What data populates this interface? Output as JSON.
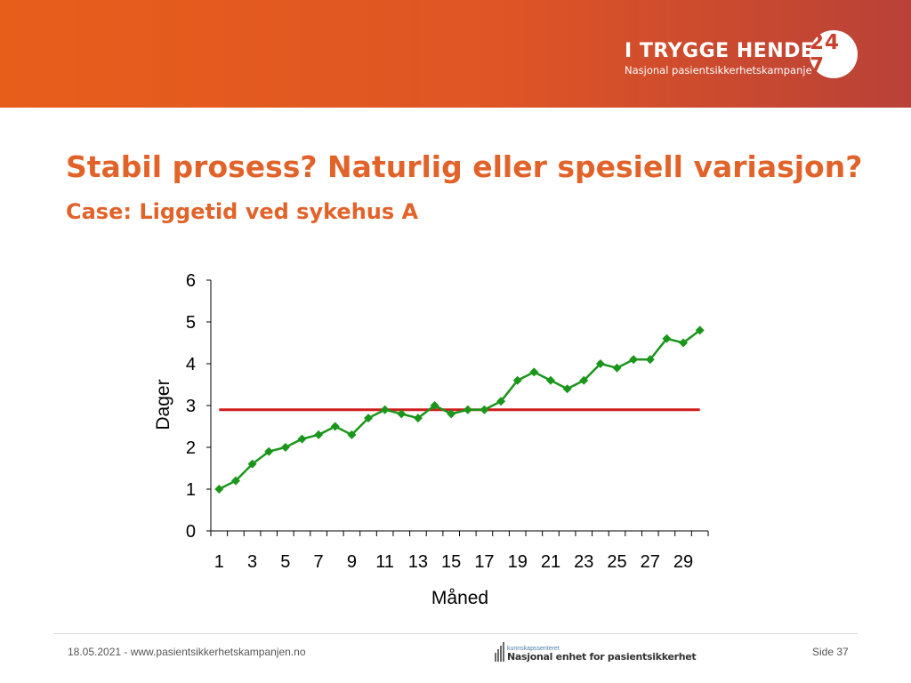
{
  "header": {
    "brand_title": "I TRYGGE HENDER",
    "brand_badge": "24 7",
    "brand_subtitle": "Nasjonal pasientsikkerhetskampanje"
  },
  "slide": {
    "title": "Stabil prosess? Naturlig eller spesiell variasjon?",
    "subtitle": "Case: Liggetid ved sykehus A"
  },
  "chart_data": {
    "type": "line",
    "xlabel": "Måned",
    "ylabel": "Dager",
    "x": [
      1,
      2,
      3,
      4,
      5,
      6,
      7,
      8,
      9,
      10,
      11,
      12,
      13,
      14,
      15,
      16,
      17,
      18,
      19,
      20,
      21,
      22,
      23,
      24,
      25,
      26,
      27,
      28,
      29,
      30
    ],
    "x_tick_labels": [
      "1",
      "3",
      "5",
      "7",
      "9",
      "11",
      "13",
      "15",
      "17",
      "19",
      "21",
      "23",
      "25",
      "27",
      "29"
    ],
    "y_tick_labels": [
      "0",
      "1",
      "2",
      "3",
      "4",
      "5",
      "6"
    ],
    "ylim": [
      0,
      6
    ],
    "series": [
      {
        "values": [
          1.0,
          1.2,
          1.6,
          1.9,
          2.0,
          2.2,
          2.3,
          2.5,
          2.3,
          2.7,
          2.9,
          2.8,
          2.7,
          3.0,
          2.8,
          2.9,
          2.9,
          3.1,
          3.6,
          3.8,
          3.6,
          3.4,
          3.6,
          4.0,
          3.9,
          4.1,
          4.1,
          4.6,
          4.5,
          4.8
        ],
        "color": "#1a961a",
        "marker": "diamond"
      }
    ],
    "reference_line": {
      "value": 2.9,
      "color": "#d01c1c"
    },
    "grid": false,
    "legend": "none"
  },
  "footer": {
    "left_text": "18.05.2021 - www.pasientsikkerhetskampanjen.no",
    "logo_small": "kunnskapssenteret",
    "logo_main": "Nasjonal enhet for pasientsikkerhet",
    "page": "Side 37"
  }
}
